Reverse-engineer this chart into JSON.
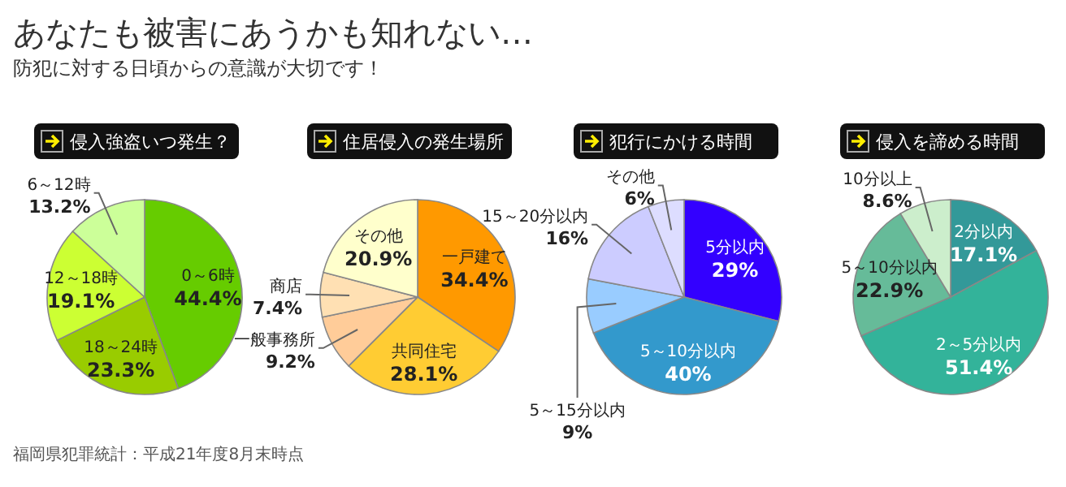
{
  "chart_data": [
    {
      "type": "other",
      "title": "あなたも被害にあうかも知れない…",
      "subtitle": "防犯に対する日頃からの意識が大切です！",
      "annotations": [
        "福岡県犯罪統計：平成21年度8月末時点"
      ]
    },
    {
      "type": "pie",
      "title": "侵入強盗いつ発生？",
      "categories": [
        "0～6時",
        "18～24時",
        "12～18時",
        "6～12時"
      ],
      "values": [
        44.4,
        23.3,
        19.1,
        13.2
      ],
      "value_labels": [
        "44.4%",
        "23.3%",
        "19.1%",
        "13.2%"
      ],
      "colors": [
        "#66cc00",
        "#99cc00",
        "#ccff33",
        "#ccff99"
      ]
    },
    {
      "type": "pie",
      "title": "住居侵入の発生場所",
      "categories": [
        "一戸建て",
        "共同住宅",
        "一般事務所",
        "商店",
        "その他"
      ],
      "values": [
        34.4,
        28.1,
        9.2,
        7.4,
        20.9
      ],
      "value_labels": [
        "34.4%",
        "28.1%",
        "9.2%",
        "7.4%",
        "20.9%"
      ],
      "colors": [
        "#ff9900",
        "#ffcc33",
        "#ffcc99",
        "#ffe0b3",
        "#ffffcc"
      ]
    },
    {
      "type": "pie",
      "title": "犯行にかける時間",
      "categories": [
        "5分以内",
        "5～10分以内",
        "5～15分以内",
        "15～20分以内",
        "その他"
      ],
      "values": [
        29,
        40,
        9,
        16,
        6
      ],
      "value_labels": [
        "29%",
        "40%",
        "9%",
        "16%",
        "6%"
      ],
      "colors": [
        "#3300ff",
        "#3399cc",
        "#99ccff",
        "#ccccff",
        "#ddddff"
      ]
    },
    {
      "type": "pie",
      "title": "侵入を諦める時間",
      "categories": [
        "2分以内",
        "2～5分以内",
        "5～10分以内",
        "10分以上"
      ],
      "values": [
        17.1,
        51.4,
        22.9,
        8.6
      ],
      "value_labels": [
        "17.1%",
        "51.4%",
        "22.9%",
        "8.6%"
      ],
      "colors": [
        "#339999",
        "#33b39a",
        "#66bb99",
        "#cceecc"
      ]
    }
  ]
}
